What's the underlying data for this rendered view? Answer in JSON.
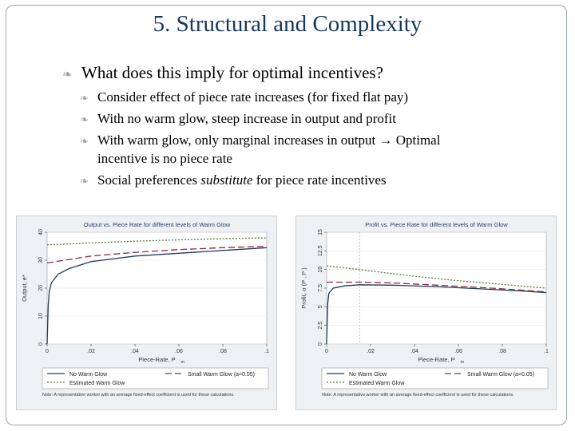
{
  "slide": {
    "title": "5. Structural and Complexity",
    "bullet_main": "What does this imply for optimal incentives?",
    "sub_bullets": [
      {
        "text": "Consider effect of piece rate increases (for fixed flat pay)"
      },
      {
        "text": "With no warm glow, steep increase in output and profit"
      },
      {
        "line1": "With warm glow, only marginal increases in output ",
        "arrow": "→",
        "after": " Optimal",
        "line2": "incentive is no piece rate"
      },
      {
        "pre": "Social preferences ",
        "em": "substitute",
        "post": " for piece rate incentives"
      }
    ],
    "bullet_icon": "curl-bullet-icon",
    "accent": "#17375e"
  },
  "chart_data": [
    {
      "type": "line",
      "title": "Output vs. Piece Rate for different levels of Warm Glow",
      "xlabel": "Piece-Rate, P",
      "xlabel_sub": "m",
      "ylabel": "Output, e*",
      "xlim": [
        0,
        0.1
      ],
      "ylim": [
        0,
        40
      ],
      "xticks": [
        0,
        0.02,
        0.04,
        0.06,
        0.08,
        0.1
      ],
      "xtick_labels": [
        "0",
        ".02",
        ".04",
        ".06",
        ".08",
        ".1"
      ],
      "yticks": [
        0,
        10,
        20,
        30,
        40
      ],
      "ytick_labels": [
        "0",
        "10",
        "20",
        "30",
        "40"
      ],
      "series": [
        {
          "name": "No Warm Glow",
          "color": "#1f3b5c",
          "dash": "",
          "x": [
            0,
            0.0005,
            0.001,
            0.002,
            0.005,
            0.01,
            0.02,
            0.04,
            0.06,
            0.08,
            0.1
          ],
          "y": [
            0,
            14,
            19,
            22,
            25,
            27,
            29.5,
            31.5,
            32.5,
            33.5,
            34.5
          ]
        },
        {
          "name": "Small Warm Glow (a=0.05)",
          "color": "#8b2a3a",
          "dash": "8,4",
          "x": [
            0,
            0.02,
            0.04,
            0.06,
            0.08,
            0.1
          ],
          "y": [
            29,
            31.5,
            32.8,
            33.8,
            34.5,
            35
          ]
        },
        {
          "name": "Estimated Warm Glow",
          "color": "#5a7a3a",
          "dash": "2,2",
          "x": [
            0,
            0.02,
            0.04,
            0.06,
            0.08,
            0.1
          ],
          "y": [
            35.5,
            36.2,
            36.8,
            37.3,
            37.7,
            38
          ]
        }
      ],
      "legend": [
        "No Warm Glow",
        "Small Warm Glow (a=0.05)",
        "Estimated Warm Glow"
      ],
      "note": "Note: A representative worker with an average fixed-effect coefficient is used for these calculations."
    },
    {
      "type": "line",
      "title": "Profit vs. Piece Rate for different levels of Warm Glow",
      "xlabel": "Piece-Rate, P",
      "xlabel_sub": "m",
      "ylabel": "Profit, σ (P , P )",
      "xlim": [
        0,
        0.1
      ],
      "ylim": [
        0,
        15
      ],
      "xticks": [
        0,
        0.02,
        0.04,
        0.06,
        0.08,
        0.1
      ],
      "xtick_labels": [
        "0",
        ".02",
        ".04",
        ".06",
        ".08",
        ".1"
      ],
      "yticks": [
        0,
        2.5,
        5,
        7.5,
        10,
        12.5,
        15
      ],
      "ytick_labels": [
        "0",
        "2.5",
        "5",
        "7.5",
        "10",
        "12.5",
        "15"
      ],
      "vline_x": 0.015,
      "markers": [
        "P",
        "Pm"
      ],
      "series": [
        {
          "name": "No Warm Glow",
          "color": "#1f3b5c",
          "dash": "",
          "x": [
            0,
            0.0005,
            0.001,
            0.003,
            0.008,
            0.015,
            0.03,
            0.05,
            0.07,
            0.09,
            0.1
          ],
          "y": [
            0,
            5.5,
            6.8,
            7.5,
            7.8,
            7.95,
            7.9,
            7.7,
            7.4,
            7.1,
            6.9
          ]
        },
        {
          "name": "Small Warm Glow (a=0.05)",
          "color": "#8b2a3a",
          "dash": "8,4",
          "x": [
            0,
            0.015,
            0.03,
            0.05,
            0.07,
            0.09,
            0.1
          ],
          "y": [
            8.3,
            8.3,
            8.2,
            7.9,
            7.6,
            7.2,
            7
          ]
        },
        {
          "name": "Estimated Warm Glow",
          "color": "#5a7a3a",
          "dash": "2,2",
          "x": [
            0,
            0.02,
            0.04,
            0.06,
            0.08,
            0.1
          ],
          "y": [
            10.5,
            9.8,
            9.1,
            8.5,
            8,
            7.5
          ]
        }
      ],
      "legend": [
        "No Warm Glow",
        "Small Warm Glow (a=0.05)",
        "Estimated Warm Glow"
      ],
      "note": "Note: A representative worker with an average fixed-effect coefficient is used for these calculations."
    }
  ]
}
